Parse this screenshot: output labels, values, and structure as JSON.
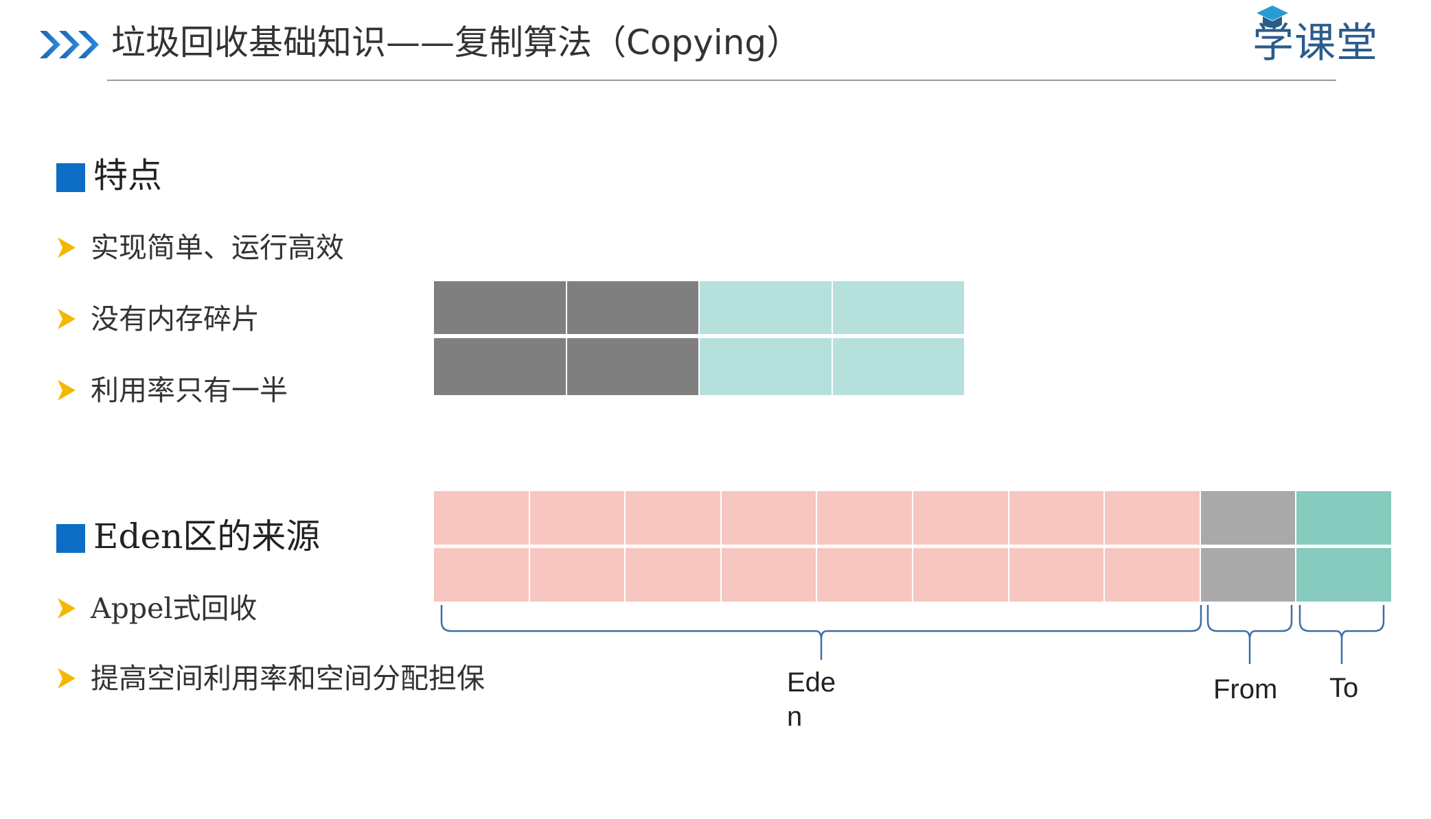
{
  "header": {
    "title": "垃圾回收基础知识——复制算法（Copying）",
    "logo_text": "学课堂",
    "chevron_icon": "triple-chevron-right-icon",
    "logo_icon": "graduation-cap-icon"
  },
  "colors": {
    "accent_blue": "#0d6dc4",
    "bullet_arrow": "#f5b800",
    "used_memory": "#7f7f7f",
    "free_memory": "#b5e0db",
    "eden": "#f7c6c0",
    "from_space": "#a9a9a9",
    "to_space": "#86cbbd",
    "brace": "#3a6ea8"
  },
  "sections": [
    {
      "title": "特点",
      "bullets": [
        "实现简单、运行高效",
        "没有内存碎片",
        "利用率只有一半"
      ]
    },
    {
      "title": "Eden区的来源",
      "bullets": [
        "Appel式回收",
        "提高空间利用率和空间分配担保"
      ]
    }
  ],
  "copy_diagram": {
    "rows": [
      [
        "used",
        "used",
        "free",
        "free"
      ],
      [
        "used",
        "used",
        "free",
        "free"
      ]
    ]
  },
  "heap_diagram": {
    "rows": [
      [
        "eden",
        "eden",
        "eden",
        "eden",
        "eden",
        "eden",
        "eden",
        "eden",
        "from",
        "to"
      ],
      [
        "eden",
        "eden",
        "eden",
        "eden",
        "eden",
        "eden",
        "eden",
        "eden",
        "from",
        "to"
      ]
    ],
    "labels": {
      "eden": "Eden",
      "from": "From",
      "to": "To"
    }
  }
}
